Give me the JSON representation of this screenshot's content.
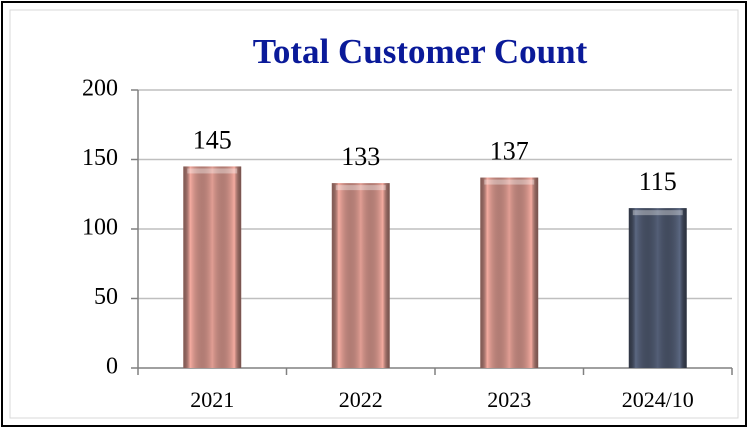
{
  "chart_data": {
    "type": "bar",
    "title": "Total Customer Count",
    "categories": [
      "2021",
      "2022",
      "2023",
      "2024/10"
    ],
    "values": [
      145,
      133,
      137,
      115
    ],
    "colors": [
      "#f4aba0",
      "#f4aba0",
      "#f4aba0",
      "#5b6781"
    ],
    "ylim": [
      0,
      200
    ],
    "yticks": [
      0,
      50,
      100,
      150,
      200
    ],
    "grid": true
  }
}
